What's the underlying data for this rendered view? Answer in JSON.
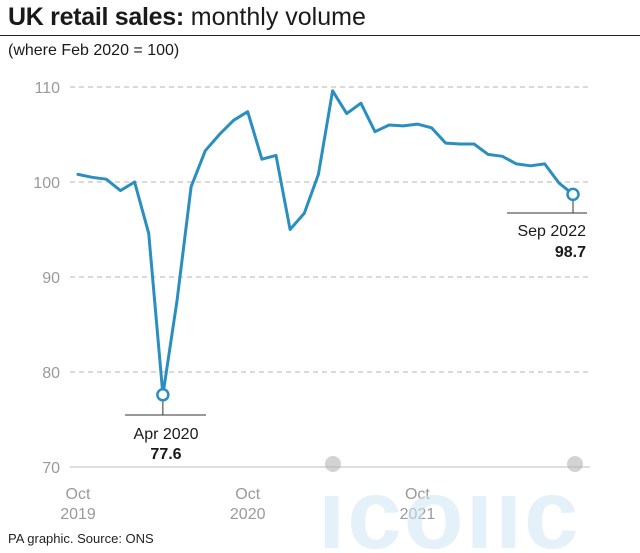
{
  "header": {
    "title_bold": "UK retail sales:",
    "title_rest": " monthly volume",
    "subtitle": "(where Feb 2020 = 100)"
  },
  "footer": {
    "source": "PA graphic. Source: ONS"
  },
  "watermark": {
    "text": "iconic"
  },
  "chart_data": {
    "type": "line",
    "title": "UK retail sales: monthly volume",
    "subtitle": "(where Feb 2020 = 100)",
    "y_ticks": [
      70,
      80,
      90,
      100,
      110
    ],
    "ylim": [
      70,
      111
    ],
    "x_ticks": [
      {
        "line1": "Oct",
        "line2": "2019",
        "index": 0
      },
      {
        "line1": "Oct",
        "line2": "2020",
        "index": 12
      },
      {
        "line1": "Oct",
        "line2": "2021",
        "index": 24
      }
    ],
    "x_range_index": [
      0,
      35
    ],
    "grid": true,
    "color": "#2a8fc0",
    "series": [
      {
        "x": [
          "2019-10",
          "2019-11",
          "2019-12",
          "2020-01",
          "2020-02",
          "2020-03",
          "2020-04",
          "2020-05",
          "2020-06",
          "2020-07",
          "2020-08",
          "2020-09",
          "2020-10",
          "2020-11",
          "2020-12",
          "2021-01",
          "2021-02",
          "2021-03",
          "2021-04",
          "2021-05",
          "2021-06",
          "2021-07",
          "2021-08",
          "2021-09",
          "2021-10",
          "2021-11",
          "2021-12",
          "2022-01",
          "2022-02",
          "2022-03",
          "2022-04",
          "2022-05",
          "2022-06",
          "2022-07",
          "2022-08",
          "2022-09"
        ],
        "values": [
          100.8,
          100.5,
          100.3,
          99.1,
          100.0,
          94.6,
          77.6,
          87.5,
          99.5,
          103.3,
          105.0,
          106.5,
          107.4,
          102.4,
          102.8,
          95.0,
          96.7,
          100.8,
          109.6,
          107.2,
          108.3,
          105.3,
          106.0,
          105.9,
          106.1,
          105.7,
          104.1,
          104.0,
          104.0,
          102.9,
          102.7,
          101.9,
          101.7,
          101.9,
          99.9,
          98.7
        ]
      }
    ],
    "annotations": [
      {
        "label": "Apr 2020",
        "value": "77.6",
        "index": 6
      },
      {
        "label": "Sep 2022",
        "value": "98.7",
        "index": 35
      }
    ]
  }
}
